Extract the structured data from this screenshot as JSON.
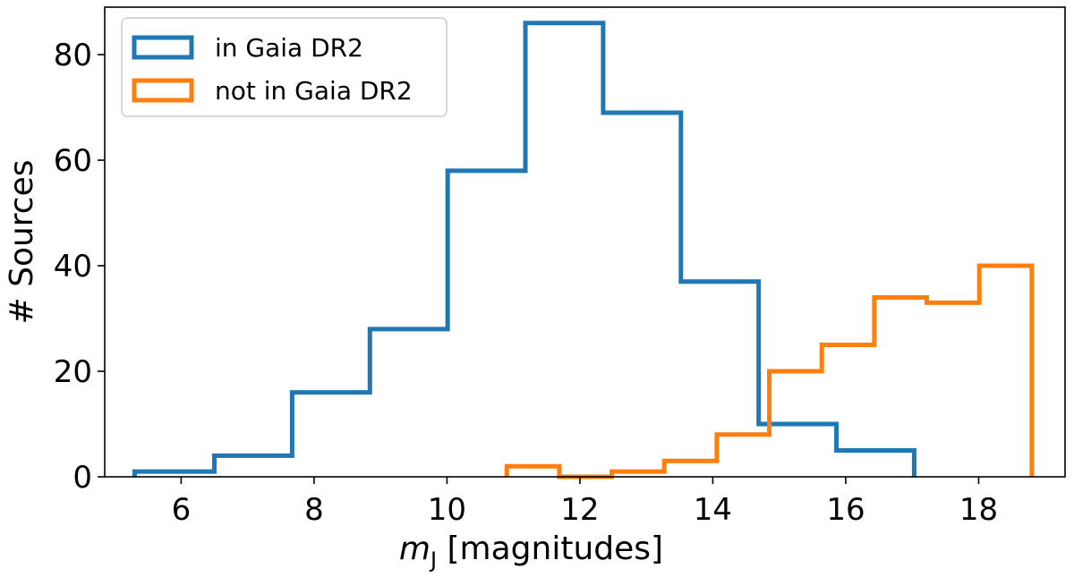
{
  "chart_data": {
    "type": "histogram-step",
    "title": "",
    "xlabel_symbol": "m",
    "xlabel_subscript": "J",
    "xlabel_rest": " [magnitudes]",
    "ylabel": "# Sources",
    "xlim": [
      4.85,
      19.3
    ],
    "ylim": [
      0,
      89
    ],
    "xticks": [
      6,
      8,
      10,
      12,
      14,
      16,
      18
    ],
    "yticks": [
      0,
      20,
      40,
      60,
      80
    ],
    "legend_position": "top-left",
    "series": [
      {
        "name": "in Gaia DR2",
        "color": "#1f77b4",
        "edges": [
          5.3,
          6.5,
          7.67,
          8.84,
          10.01,
          11.18,
          12.35,
          13.52,
          14.69,
          15.86,
          17.03
        ],
        "counts": [
          1,
          4,
          16,
          28,
          58,
          86,
          69,
          37,
          10,
          5
        ]
      },
      {
        "name": "not in Gaia DR2",
        "color": "#ff7f0e",
        "edges": [
          10.9,
          11.69,
          12.48,
          13.27,
          14.06,
          14.85,
          15.64,
          16.43,
          17.22,
          18.01,
          18.8
        ],
        "counts": [
          2,
          0,
          1,
          3,
          8,
          20,
          25,
          34,
          33,
          40
        ]
      }
    ]
  }
}
